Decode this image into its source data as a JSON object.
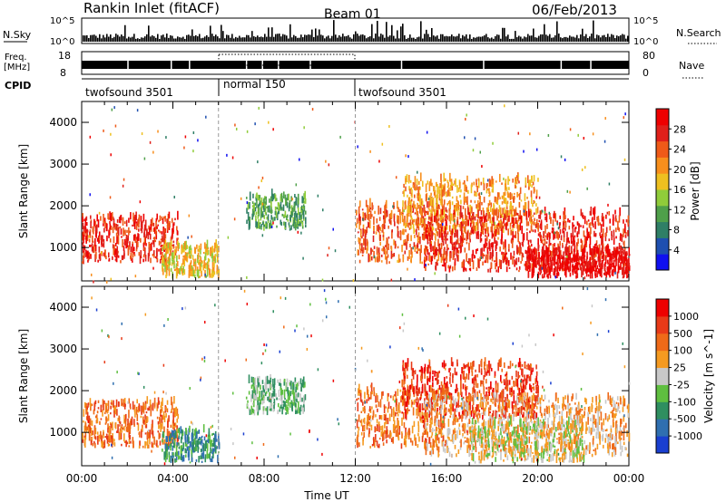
{
  "header": {
    "title": "Rankin Inlet (fitACF)",
    "beam": "Beam 01",
    "date": "06/Feb/2013"
  },
  "panels": {
    "nsky_label": "N.Sky",
    "nsearch_label": "N.Search",
    "nsky_ticks": [
      "10^5",
      "10^0"
    ],
    "nsearch_ticks": [
      "10^5",
      "10^0"
    ],
    "freq_label_top": "Freq.",
    "freq_label_bottom": "[MHz]",
    "freq_ticks": [
      "18",
      "8"
    ],
    "nave_ticks": [
      "80",
      "0"
    ],
    "nave_label": "Nave",
    "cpid_label": "CPID",
    "cpid_segments": [
      {
        "name": "twofsound 3501",
        "start": 0,
        "end": 6
      },
      {
        "name": "normal 150",
        "start": 6,
        "end": 12
      },
      {
        "name": "twofsound 3501",
        "start": 12,
        "end": 24
      }
    ]
  },
  "chart_data": [
    {
      "type": "heatmap",
      "name": "Power",
      "ylabel": "Slant Range [km]",
      "xlabel": "",
      "ylim": [
        200,
        4500
      ],
      "xlim": [
        0,
        24
      ],
      "yticks": [
        1000,
        2000,
        3000,
        4000
      ],
      "colorbar": {
        "label": "Power [dB]",
        "ticks": [
          "4",
          "8",
          "12",
          "16",
          "20",
          "24",
          "28"
        ],
        "colors": [
          "#1010f0",
          "#1e4fb0",
          "#2f7f66",
          "#4fa04a",
          "#90cc3a",
          "#eec020",
          "#f88f1c",
          "#ef5a18",
          "#e0201a",
          "#ee0000"
        ]
      },
      "regions": [
        {
          "t0": 0.0,
          "t1": 4.2,
          "r0": 600,
          "r1": 1700,
          "level": 8
        },
        {
          "t0": 3.5,
          "t1": 6.0,
          "r0": 250,
          "r1": 1000,
          "level": 5
        },
        {
          "t0": 7.2,
          "t1": 9.8,
          "r0": 1400,
          "r1": 2200,
          "level": 3
        },
        {
          "t0": 12.0,
          "t1": 16.0,
          "r0": 600,
          "r1": 2000,
          "level": 7
        },
        {
          "t0": 14.0,
          "t1": 20.0,
          "r0": 1300,
          "r1": 2600,
          "level": 6
        },
        {
          "t0": 15.0,
          "t1": 24.0,
          "r0": 400,
          "r1": 1800,
          "level": 8
        },
        {
          "t0": 19.5,
          "t1": 24.0,
          "r0": 250,
          "r1": 900,
          "level": 9
        }
      ]
    },
    {
      "type": "heatmap",
      "name": "Velocity",
      "ylabel": "Slant Range [km]",
      "xlabel": "Time UT",
      "ylim": [
        200,
        4500
      ],
      "xlim": [
        0,
        24
      ],
      "yticks": [
        1000,
        2000,
        3000,
        4000
      ],
      "xticks": [
        "00:00",
        "04:00",
        "08:00",
        "12:00",
        "16:00",
        "20:00",
        "00:00"
      ],
      "colorbar": {
        "label": "Velocity [m s^-1]",
        "ticks": [
          "1000",
          "500",
          "100",
          "25",
          "-25",
          "-100",
          "-500",
          "-1000"
        ],
        "colors": [
          "#1a3fd0",
          "#2f6fb0",
          "#2f8f60",
          "#5fbf40",
          "#c8c8c8",
          "#f59a20",
          "#ef6a18",
          "#e83a18",
          "#ee0000"
        ]
      },
      "regions": [
        {
          "t0": 0.0,
          "t1": 4.2,
          "r0": 600,
          "r1": 1700,
          "level": 6
        },
        {
          "t0": 3.5,
          "t1": 6.0,
          "r0": 250,
          "r1": 1000,
          "level": 2
        },
        {
          "t0": 7.2,
          "t1": 9.8,
          "r0": 1400,
          "r1": 2200,
          "level": 3
        },
        {
          "t0": 12.0,
          "t1": 16.0,
          "r0": 600,
          "r1": 2000,
          "level": 6
        },
        {
          "t0": 14.0,
          "t1": 20.0,
          "r0": 1300,
          "r1": 2600,
          "level": 7
        },
        {
          "t0": 15.0,
          "t1": 24.0,
          "r0": 400,
          "r1": 1800,
          "level": 5
        },
        {
          "t0": 17.0,
          "t1": 22.0,
          "r0": 250,
          "r1": 1200,
          "level": 4
        }
      ]
    }
  ]
}
